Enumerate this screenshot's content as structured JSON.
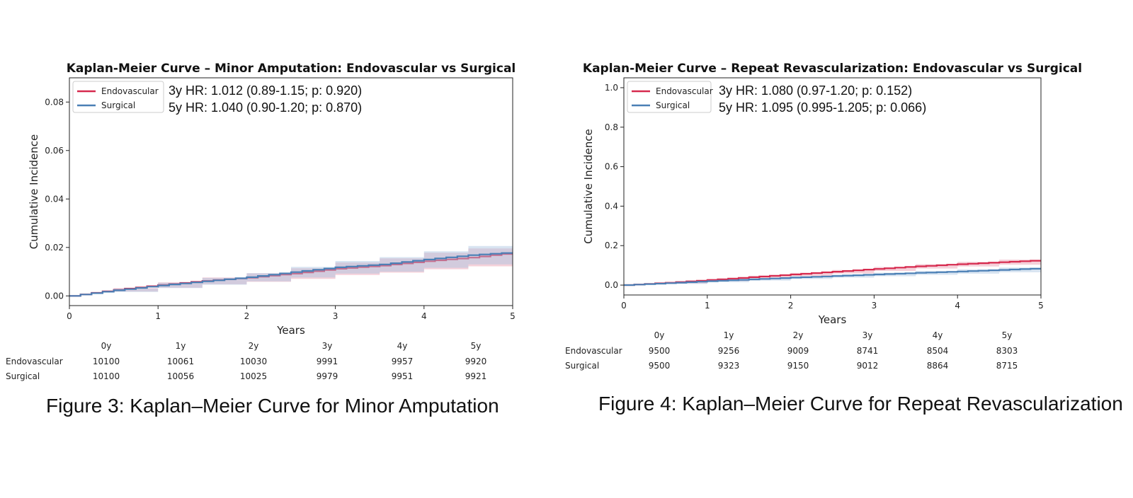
{
  "chart_data": [
    {
      "type": "line",
      "title": "Kaplan-Meier Curve – Minor Amputation: Endovascular vs Surgical",
      "xlabel": "Years",
      "ylabel": "Cumulative Incidence",
      "xlim": [
        0,
        5
      ],
      "ylim": [
        -0.004,
        0.09
      ],
      "xticks": [
        0,
        1,
        2,
        3,
        4,
        5
      ],
      "yticks": [
        "0.00",
        "0.02",
        "0.04",
        "0.06",
        "0.08"
      ],
      "ytick_values": [
        0,
        0.02,
        0.04,
        0.06,
        0.08
      ],
      "legend": [
        "Endovascular",
        "Surgical"
      ],
      "legend_position": "top-left",
      "annotations": [
        "3y HR: 1.012 (0.89-1.15; p: 0.920)",
        "5y HR: 1.040 (0.90-1.20; p: 0.870)"
      ],
      "series": [
        {
          "name": "Endovascular",
          "color": "#d62a4e",
          "band_color": "#e89aae",
          "x": [
            0,
            0.5,
            1,
            1.5,
            2,
            2.5,
            3,
            3.5,
            4,
            4.5,
            5
          ],
          "values": [
            0,
            0.0025,
            0.0045,
            0.0062,
            0.0075,
            0.0092,
            0.0112,
            0.0125,
            0.0143,
            0.0158,
            0.0178
          ],
          "lower": [
            0,
            0.0018,
            0.0034,
            0.0048,
            0.0058,
            0.007,
            0.0086,
            0.0096,
            0.011,
            0.0122,
            0.014
          ],
          "upper": [
            0,
            0.0032,
            0.0056,
            0.0076,
            0.0093,
            0.0114,
            0.0138,
            0.0155,
            0.0178,
            0.0196,
            0.022
          ]
        },
        {
          "name": "Surgical",
          "color": "#4a7fb5",
          "band_color": "#a8c4e0",
          "x": [
            0,
            0.5,
            1,
            1.5,
            2,
            2.5,
            3,
            3.5,
            4,
            4.5,
            5
          ],
          "values": [
            0,
            0.0023,
            0.0043,
            0.006,
            0.0077,
            0.0098,
            0.0118,
            0.013,
            0.015,
            0.0168,
            0.018
          ],
          "lower": [
            0,
            0.0016,
            0.0032,
            0.0046,
            0.006,
            0.0076,
            0.0092,
            0.01,
            0.0116,
            0.013,
            0.0142
          ],
          "upper": [
            0,
            0.003,
            0.0054,
            0.0074,
            0.0094,
            0.012,
            0.0144,
            0.016,
            0.0184,
            0.0206,
            0.0222
          ]
        }
      ],
      "risk_table": {
        "headers": [
          "0y",
          "1y",
          "2y",
          "3y",
          "4y",
          "5y"
        ],
        "rows": [
          {
            "label": "Endovascular",
            "values": [
              "10100",
              "10061",
              "10030",
              "9991",
              "9957",
              "9920"
            ]
          },
          {
            "label": "Surgical",
            "values": [
              "10100",
              "10056",
              "10025",
              "9979",
              "9951",
              "9921"
            ]
          }
        ]
      }
    },
    {
      "type": "line",
      "title": "Kaplan-Meier Curve – Repeat Revascularization: Endovascular vs Surgical",
      "xlabel": "Years",
      "ylabel": "Cumulative Incidence",
      "xlim": [
        0,
        5
      ],
      "ylim": [
        -0.05,
        1.05
      ],
      "xticks": [
        0,
        1,
        2,
        3,
        4,
        5
      ],
      "yticks": [
        "0.0",
        "0.2",
        "0.4",
        "0.6",
        "0.8",
        "1.0"
      ],
      "ytick_values": [
        0,
        0.2,
        0.4,
        0.6,
        0.8,
        1.0
      ],
      "legend": [
        "Endovascular",
        "Surgical"
      ],
      "legend_position": "top-left",
      "annotations": [
        "3y HR: 1.080 (0.97-1.20; p: 0.152)",
        "5y HR: 1.095 (0.995-1.205; p: 0.066)"
      ],
      "series": [
        {
          "name": "Endovascular",
          "color": "#d62a4e",
          "band_color": "#e89aae",
          "x": [
            0,
            0.5,
            1,
            1.5,
            2,
            2.5,
            3,
            3.5,
            4,
            4.5,
            5
          ],
          "values": [
            0,
            0.012,
            0.026,
            0.04,
            0.054,
            0.068,
            0.082,
            0.095,
            0.106,
            0.116,
            0.126
          ],
          "lower": [
            0,
            0.008,
            0.02,
            0.033,
            0.046,
            0.059,
            0.072,
            0.084,
            0.094,
            0.103,
            0.112
          ],
          "upper": [
            0,
            0.016,
            0.032,
            0.047,
            0.062,
            0.077,
            0.092,
            0.106,
            0.118,
            0.129,
            0.14
          ]
        },
        {
          "name": "Surgical",
          "color": "#4a7fb5",
          "band_color": "#a8c4e0",
          "x": [
            0,
            0.5,
            1,
            1.5,
            2,
            2.5,
            3,
            3.5,
            4,
            4.5,
            5
          ],
          "values": [
            0,
            0.01,
            0.02,
            0.029,
            0.038,
            0.046,
            0.054,
            0.062,
            0.069,
            0.077,
            0.085
          ],
          "lower": [
            0,
            0.006,
            0.015,
            0.023,
            0.031,
            0.038,
            0.045,
            0.052,
            0.058,
            0.065,
            0.072
          ],
          "upper": [
            0,
            0.014,
            0.025,
            0.035,
            0.045,
            0.054,
            0.063,
            0.072,
            0.08,
            0.089,
            0.098
          ]
        }
      ],
      "risk_table": {
        "headers": [
          "0y",
          "1y",
          "2y",
          "3y",
          "4y",
          "5y"
        ],
        "rows": [
          {
            "label": "Endovascular",
            "values": [
              "9500",
              "9256",
              "9009",
              "8741",
              "8504",
              "8303"
            ]
          },
          {
            "label": "Surgical",
            "values": [
              "9500",
              "9323",
              "9150",
              "9012",
              "8864",
              "8715"
            ]
          }
        ]
      }
    }
  ],
  "captions": {
    "figure3": "Figure 3: Kaplan–Meier Curve for Minor Amputation",
    "figure4": "Figure 4: Kaplan–Meier Curve for Repeat Revascularization"
  }
}
